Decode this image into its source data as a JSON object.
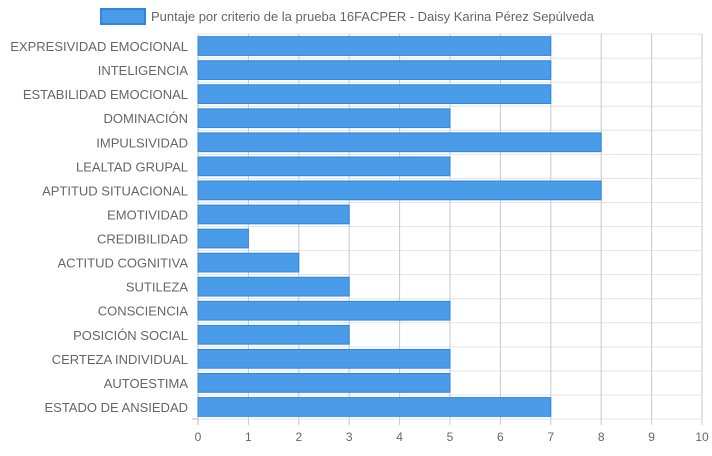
{
  "chart_data": {
    "type": "bar",
    "orientation": "horizontal",
    "categories": [
      "EXPRESIVIDAD EMOCIONAL",
      "INTELIGENCIA",
      "ESTABILIDAD EMOCIONAL",
      "DOMINACIÓN",
      "IMPULSIVIDAD",
      "LEALTAD GRUPAL",
      "APTITUD SITUACIONAL",
      "EMOTIVIDAD",
      "CREDIBILIDAD",
      "ACTITUD COGNITIVA",
      "SUTILEZA",
      "CONSCIENCIA",
      "POSICIÓN SOCIAL",
      "CERTEZA INDIVIDUAL",
      "AUTOESTIMA",
      "ESTADO DE ANSIEDAD"
    ],
    "series": [
      {
        "name": "Puntaje por criterio de la prueba 16FACPER - Daisy Karina Pérez Sepúlveda",
        "values": [
          7,
          7,
          7,
          5,
          8,
          5,
          8,
          3,
          1,
          2,
          3,
          5,
          3,
          5,
          5,
          7
        ],
        "color": "#4a9be8",
        "border_color": "#2f86dd"
      }
    ],
    "xlim": [
      0,
      10
    ],
    "x_ticks": [
      "0",
      "1",
      "2",
      "3",
      "4",
      "5",
      "6",
      "7",
      "8",
      "9",
      "10"
    ],
    "grid": true,
    "legend_position": "top"
  }
}
